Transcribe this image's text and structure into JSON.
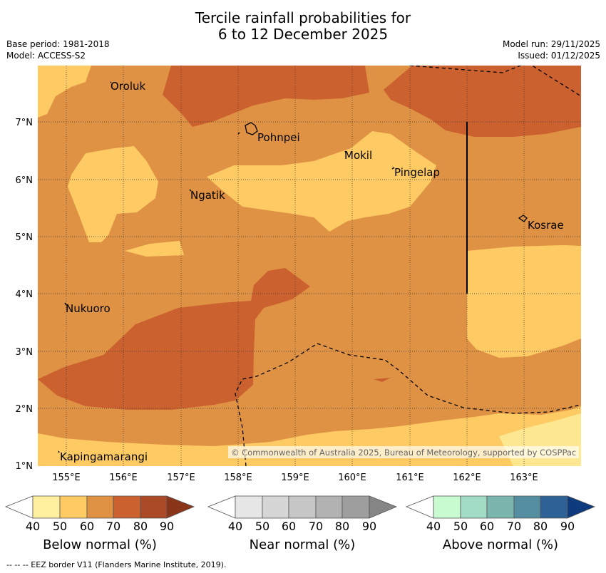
{
  "title": {
    "line1": "Tercile rainfall probabilities for",
    "line2": "6 to 12 December 2025"
  },
  "meta": {
    "base_period": "Base period: 1981-2018",
    "model": "Model: ACCESS-S2",
    "model_run": "Model run: 29/11/2025",
    "issued": "Issued: 01/12/2025"
  },
  "map": {
    "lon_labels": [
      "155°E",
      "156°E",
      "157°E",
      "158°E",
      "159°E",
      "160°E",
      "161°E",
      "162°E",
      "163°E"
    ],
    "lat_labels": [
      "7°N",
      "6°N",
      "5°N",
      "4°N",
      "3°N",
      "2°N",
      "1°N"
    ],
    "places": [
      "Oroluk",
      "Pohnpei",
      "Mokil",
      "Pingelap",
      "Ngatik",
      "Kosrae",
      "Nukuoro",
      "Kapingamarangi"
    ],
    "copyright": "© Commonwealth of Australia 2025, Bureau of Meteorology, supported by COSPPac",
    "colors": {
      "b50": "#fde891",
      "b60": "#fdca64",
      "b70": "#e09244",
      "b80": "#cc6130",
      "b90": "#ab4a26",
      "b100": "#8a3519"
    }
  },
  "legends": {
    "ticks": [
      "40",
      "50",
      "60",
      "70",
      "80",
      "90"
    ],
    "below": {
      "label": "Below normal (%)",
      "colors": [
        "#fff0a0",
        "#fdca64",
        "#e09244",
        "#cc6130",
        "#ab4a26",
        "#8a3519"
      ]
    },
    "near": {
      "label": "Near normal (%)",
      "colors": [
        "#e6e6e6",
        "#d6d6d6",
        "#c6c6c6",
        "#b2b2b2",
        "#9e9e9e",
        "#858585"
      ]
    },
    "above": {
      "label": "Above normal (%)",
      "colors": [
        "#c8fbd0",
        "#a2dbc4",
        "#7ab5ae",
        "#558ea0",
        "#2e6296",
        "#0d3b7d"
      ]
    }
  },
  "footer": "--  --  -- EEZ border V11 (Flanders Marine Institute, 2019)."
}
